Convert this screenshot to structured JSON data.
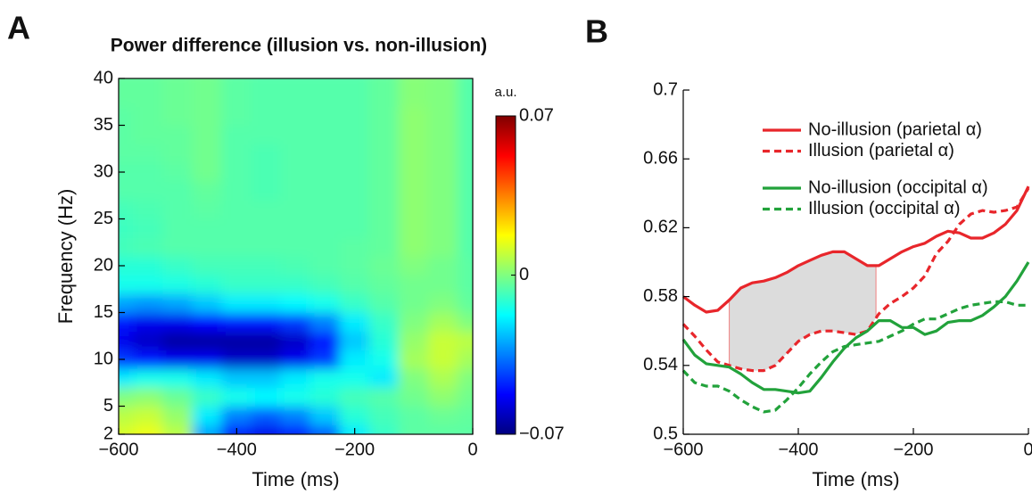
{
  "chart_data": [
    {
      "type": "heatmap",
      "panel_label": "A",
      "title": "Power difference (illusion vs. non-illusion)",
      "xlabel": "Time (ms)",
      "ylabel": "Frequency (Hz)",
      "x": [
        -600,
        -550,
        -500,
        -450,
        -400,
        -350,
        -300,
        -250,
        -200,
        -150,
        -100,
        -50,
        0
      ],
      "y": [
        2,
        4,
        6,
        8,
        10,
        12,
        14,
        16,
        18,
        20,
        22,
        24,
        26,
        28,
        30,
        32,
        34,
        36,
        38,
        40
      ],
      "z": [
        [
          0.012,
          0.015,
          0.008,
          -0.03,
          -0.05,
          -0.055,
          -0.05,
          -0.04,
          -0.02,
          -0.01,
          -0.005,
          -0.005,
          -0.005
        ],
        [
          0.008,
          0.01,
          0.003,
          -0.02,
          -0.035,
          -0.04,
          -0.035,
          -0.025,
          -0.012,
          -0.008,
          -0.005,
          -0.003,
          -0.004
        ],
        [
          0,
          0.002,
          -0.003,
          -0.01,
          -0.015,
          -0.018,
          -0.015,
          -0.012,
          -0.008,
          -0.006,
          -0.002,
          0.002,
          -0.002
        ],
        [
          -0.02,
          -0.015,
          -0.015,
          -0.02,
          -0.025,
          -0.025,
          -0.02,
          -0.015,
          -0.015,
          -0.02,
          0,
          0.006,
          0
        ],
        [
          -0.045,
          -0.05,
          -0.055,
          -0.055,
          -0.06,
          -0.06,
          -0.055,
          -0.045,
          -0.02,
          -0.015,
          0.005,
          0.01,
          0.005
        ],
        [
          -0.055,
          -0.06,
          -0.065,
          -0.065,
          -0.065,
          -0.065,
          -0.06,
          -0.05,
          -0.025,
          -0.012,
          0.003,
          0.01,
          0.008
        ],
        [
          -0.05,
          -0.055,
          -0.055,
          -0.052,
          -0.05,
          -0.05,
          -0.045,
          -0.035,
          -0.02,
          -0.01,
          0,
          0.005,
          0
        ],
        [
          -0.03,
          -0.032,
          -0.03,
          -0.025,
          -0.02,
          -0.02,
          -0.018,
          -0.015,
          -0.01,
          -0.006,
          -0.002,
          0,
          -0.004
        ],
        [
          -0.015,
          -0.015,
          -0.014,
          -0.012,
          -0.01,
          -0.01,
          -0.01,
          -0.008,
          -0.006,
          -0.004,
          -0.002,
          -0.002,
          -0.005
        ],
        [
          -0.012,
          -0.012,
          -0.01,
          -0.008,
          -0.008,
          -0.008,
          -0.007,
          -0.006,
          -0.005,
          -0.003,
          0,
          -0.002,
          -0.005
        ],
        [
          -0.008,
          -0.007,
          -0.006,
          -0.006,
          -0.006,
          -0.006,
          -0.006,
          -0.006,
          -0.005,
          -0.004,
          0.002,
          0,
          -0.006
        ],
        [
          -0.009,
          -0.008,
          -0.006,
          -0.006,
          -0.006,
          -0.006,
          -0.006,
          -0.006,
          -0.006,
          -0.004,
          0.002,
          0,
          -0.006
        ],
        [
          -0.008,
          -0.007,
          -0.006,
          -0.005,
          -0.006,
          -0.006,
          -0.006,
          -0.006,
          -0.006,
          -0.004,
          0.002,
          0,
          -0.006
        ],
        [
          -0.006,
          -0.006,
          -0.006,
          -0.004,
          -0.006,
          -0.007,
          -0.006,
          -0.006,
          -0.006,
          -0.004,
          0.002,
          0,
          -0.006
        ],
        [
          -0.006,
          -0.006,
          -0.005,
          -0.002,
          -0.006,
          -0.007,
          -0.006,
          -0.006,
          -0.006,
          -0.004,
          0.002,
          0,
          -0.006
        ],
        [
          -0.005,
          -0.005,
          -0.004,
          -0.002,
          -0.006,
          -0.007,
          -0.006,
          -0.006,
          -0.006,
          -0.004,
          0.002,
          0,
          -0.006
        ],
        [
          -0.005,
          -0.004,
          -0.004,
          -0.002,
          -0.006,
          -0.006,
          -0.006,
          -0.006,
          -0.006,
          -0.004,
          0.002,
          0,
          -0.006
        ],
        [
          -0.005,
          -0.004,
          -0.003,
          -0.002,
          -0.005,
          -0.006,
          -0.006,
          -0.006,
          -0.006,
          -0.004,
          0.002,
          0,
          -0.006
        ],
        [
          -0.004,
          -0.004,
          -0.003,
          -0.002,
          -0.005,
          -0.006,
          -0.006,
          -0.006,
          -0.006,
          -0.004,
          0.001,
          0,
          -0.006
        ],
        [
          -0.004,
          -0.004,
          -0.003,
          -0.002,
          -0.005,
          -0.006,
          -0.006,
          -0.006,
          -0.006,
          -0.004,
          0.001,
          0,
          -0.006
        ]
      ],
      "xlim": [
        -600,
        0
      ],
      "ylim": [
        2,
        40
      ],
      "xticks": [
        {
          "value": -600,
          "label": "−600"
        },
        {
          "value": -400,
          "label": "−400"
        },
        {
          "value": -200,
          "label": "−200"
        },
        0
      ],
      "yticks": [
        2,
        5,
        10,
        15,
        20,
        25,
        30,
        35,
        40
      ],
      "colormap": "jet",
      "colorbar": {
        "label": "a.u.",
        "clim": [
          -0.07,
          0.07
        ],
        "ticks": [
          0.07,
          0,
          {
            "value": -0.07,
            "label": "−0.07"
          }
        ]
      }
    },
    {
      "type": "line",
      "panel_label": "B",
      "xlabel": "Time (ms)",
      "x": [
        -600,
        -580,
        -560,
        -540,
        -520,
        -500,
        -480,
        -460,
        -440,
        -420,
        -400,
        -380,
        -360,
        -340,
        -320,
        -300,
        -280,
        -260,
        -240,
        -220,
        -200,
        -180,
        -160,
        -140,
        -120,
        -100,
        -80,
        -60,
        -40,
        -20,
        0
      ],
      "series": [
        {
          "name": "No-illusion (parietal α)",
          "color": "#e8262b",
          "dash": false,
          "values": [
            0.58,
            0.575,
            0.571,
            0.572,
            0.578,
            0.585,
            0.588,
            0.589,
            0.591,
            0.594,
            0.598,
            0.601,
            0.604,
            0.606,
            0.606,
            0.602,
            0.598,
            0.598,
            0.602,
            0.606,
            0.609,
            0.611,
            0.615,
            0.618,
            0.617,
            0.614,
            0.614,
            0.617,
            0.622,
            0.63,
            0.644
          ]
        },
        {
          "name": "Illusion (parietal α)",
          "color": "#e8262b",
          "dash": true,
          "values": [
            0.564,
            0.557,
            0.549,
            0.542,
            0.54,
            0.538,
            0.537,
            0.537,
            0.54,
            0.547,
            0.554,
            0.558,
            0.56,
            0.56,
            0.559,
            0.558,
            0.56,
            0.57,
            0.576,
            0.58,
            0.585,
            0.592,
            0.605,
            0.612,
            0.622,
            0.628,
            0.63,
            0.629,
            0.63,
            0.632,
            0.643
          ]
        },
        {
          "name": "No-illusion (occipital α)",
          "color": "#22a23b",
          "dash": false,
          "values": [
            0.555,
            0.546,
            0.541,
            0.54,
            0.539,
            0.535,
            0.53,
            0.526,
            0.526,
            0.525,
            0.524,
            0.525,
            0.533,
            0.542,
            0.55,
            0.556,
            0.56,
            0.566,
            0.566,
            0.562,
            0.562,
            0.558,
            0.56,
            0.565,
            0.566,
            0.566,
            0.569,
            0.574,
            0.58,
            0.589,
            0.6
          ]
        },
        {
          "name": "Illusion (occipital α)",
          "color": "#22a23b",
          "dash": true,
          "values": [
            0.537,
            0.53,
            0.528,
            0.528,
            0.525,
            0.52,
            0.516,
            0.513,
            0.514,
            0.52,
            0.527,
            0.535,
            0.542,
            0.548,
            0.551,
            0.552,
            0.553,
            0.554,
            0.557,
            0.56,
            0.564,
            0.567,
            0.567,
            0.57,
            0.573,
            0.575,
            0.576,
            0.577,
            0.577,
            0.575,
            0.575
          ]
        }
      ],
      "xlim": [
        -600,
        0
      ],
      "ylim": [
        0.5,
        0.7
      ],
      "xticks": [
        {
          "value": -600,
          "label": "−600"
        },
        {
          "value": -400,
          "label": "−400"
        },
        {
          "value": -200,
          "label": "−200"
        },
        0
      ],
      "yticks": [
        0.5,
        0.54,
        0.58,
        0.62,
        0.66,
        0.7
      ],
      "shaded_range": [
        -520,
        -265
      ],
      "shade_color": "#dcdcdc"
    }
  ]
}
